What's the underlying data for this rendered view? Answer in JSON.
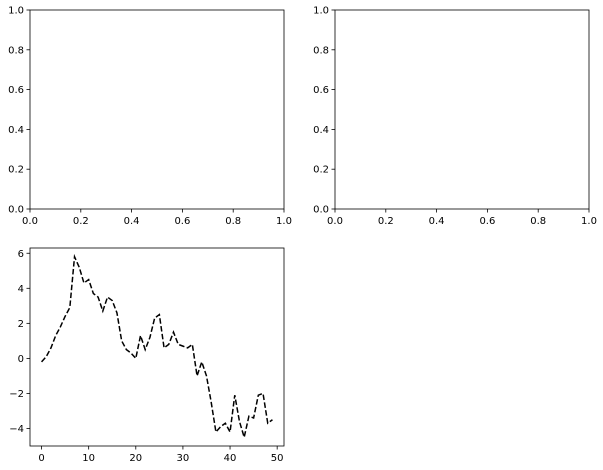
{
  "chart_data": [
    {
      "type": "line",
      "title": "",
      "xlabel": "",
      "ylabel": "",
      "xlim": [
        0,
        1
      ],
      "ylim": [
        0,
        1
      ],
      "xticks": [
        "0.0",
        "0.2",
        "0.4",
        "0.6",
        "0.8",
        "1.0"
      ],
      "yticks": [
        "0.0",
        "0.2",
        "0.4",
        "0.6",
        "0.8",
        "1.0"
      ],
      "series": []
    },
    {
      "type": "line",
      "title": "",
      "xlabel": "",
      "ylabel": "",
      "xlim": [
        0,
        1
      ],
      "ylim": [
        0,
        1
      ],
      "xticks": [
        "0.0",
        "0.2",
        "0.4",
        "0.6",
        "0.8",
        "1.0"
      ],
      "yticks": [
        "0.0",
        "0.2",
        "0.4",
        "0.6",
        "0.8",
        "1.0"
      ],
      "series": []
    },
    {
      "type": "line",
      "title": "",
      "xlabel": "",
      "ylabel": "",
      "xlim": [
        -2.45,
        51.45
      ],
      "ylim": [
        -5,
        6.3
      ],
      "xticks": [
        "0",
        "10",
        "20",
        "30",
        "40",
        "50"
      ],
      "yticks": [
        "−4",
        "−2",
        "0",
        "2",
        "4",
        "6"
      ],
      "series": [
        {
          "color": "#000000",
          "linestyle": "dashed",
          "x": [
            0,
            1,
            2,
            3,
            4,
            5,
            6,
            7,
            8,
            9,
            10,
            11,
            12,
            13,
            14,
            15,
            16,
            17,
            18,
            19,
            20,
            21,
            22,
            23,
            24,
            25,
            26,
            27,
            28,
            29,
            30,
            31,
            32,
            33,
            34,
            35,
            36,
            37,
            38,
            39,
            40,
            41,
            42,
            43,
            44,
            45,
            46,
            47,
            48,
            49
          ],
          "y": [
            -0.2,
            0.1,
            0.6,
            1.3,
            1.8,
            2.4,
            2.9,
            5.8,
            5.2,
            4.3,
            4.5,
            3.7,
            3.5,
            2.7,
            3.5,
            3.3,
            2.6,
            1.0,
            0.5,
            0.3,
            0.0,
            1.3,
            0.5,
            1.2,
            2.3,
            2.5,
            0.6,
            0.8,
            1.5,
            0.8,
            0.7,
            0.6,
            0.8,
            -1.0,
            -0.2,
            -1.0,
            -2.5,
            -4.2,
            -3.9,
            -3.7,
            -4.2,
            -2.1,
            -3.6,
            -4.5,
            -3.3,
            -3.4,
            -2.1,
            -2.0,
            -3.7,
            -3.5
          ]
        }
      ]
    }
  ]
}
